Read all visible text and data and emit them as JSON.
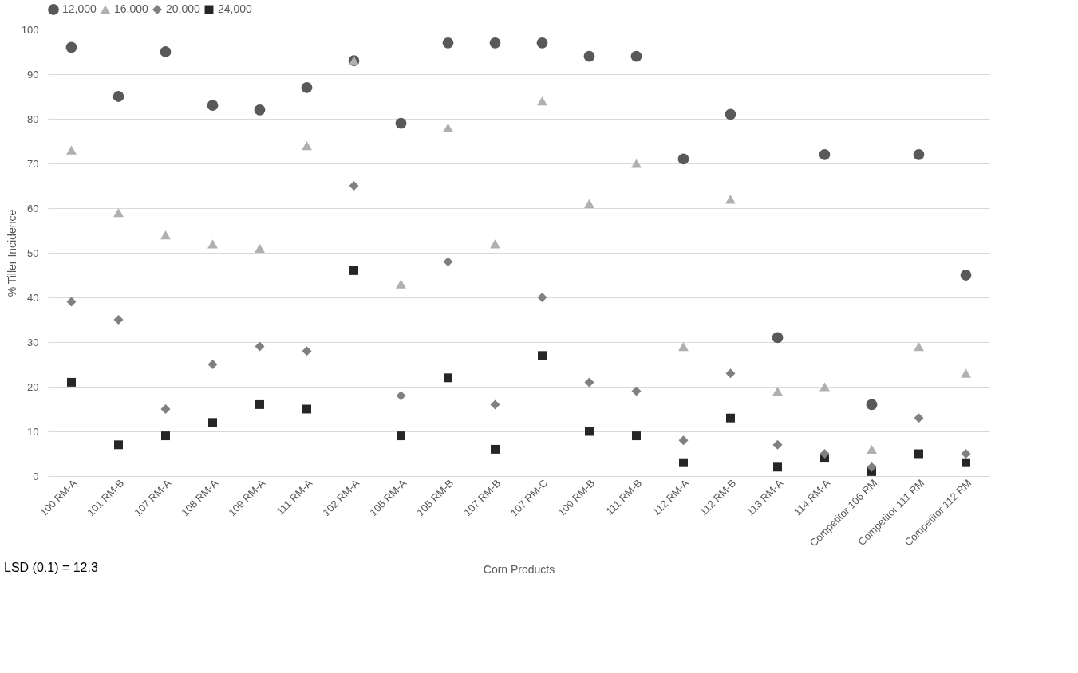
{
  "chart_data": {
    "type": "scatter",
    "xlabel": "Corn Products",
    "ylabel": "% Tiller Incidence",
    "categories": [
      "100 RM-A",
      "101 RM-B",
      "107 RM-A",
      "108 RM-A",
      "109 RM-A",
      "111 RM-A",
      "102 RM-A",
      "105 RM-A",
      "105 RM-B",
      "107 RM-B",
      "107 RM-C",
      "109 RM-B",
      "111 RM-B",
      "112 RM-A",
      "112 RM-B",
      "113 RM-A",
      "114 RM-A",
      "Competitor 106 RM",
      "Competitor 111 RM",
      "Competitor 112 RM"
    ],
    "series": [
      {
        "name": "12,000",
        "color": "#595959",
        "marker": "circle",
        "values": [
          96,
          85,
          95,
          83,
          82,
          87,
          93,
          79,
          97,
          97,
          97,
          94,
          94,
          71,
          81,
          31,
          72,
          16,
          72,
          45
        ]
      },
      {
        "name": "16,000",
        "color": "#b0b0b0",
        "marker": "triangle",
        "values": [
          73,
          59,
          54,
          52,
          51,
          74,
          93,
          43,
          78,
          52,
          84,
          61,
          70,
          29,
          62,
          19,
          20,
          6,
          29,
          23
        ]
      },
      {
        "name": "20,000",
        "color": "#808080",
        "marker": "diamond",
        "values": [
          39,
          35,
          15,
          25,
          29,
          28,
          65,
          18,
          48,
          16,
          40,
          21,
          19,
          8,
          23,
          7,
          5,
          2,
          13,
          5
        ]
      },
      {
        "name": "24,000",
        "color": "#262626",
        "marker": "square",
        "values": [
          21,
          7,
          9,
          12,
          16,
          15,
          46,
          9,
          22,
          6,
          27,
          10,
          9,
          3,
          13,
          2,
          4,
          1,
          5,
          3
        ]
      }
    ],
    "ylim": [
      0,
      100
    ],
    "yticks": [
      0,
      10,
      20,
      30,
      40,
      50,
      60,
      70,
      80,
      90,
      100
    ],
    "grid": "y",
    "legend": "top",
    "annotations": [
      "LSD (0.1) = 12.3"
    ]
  }
}
